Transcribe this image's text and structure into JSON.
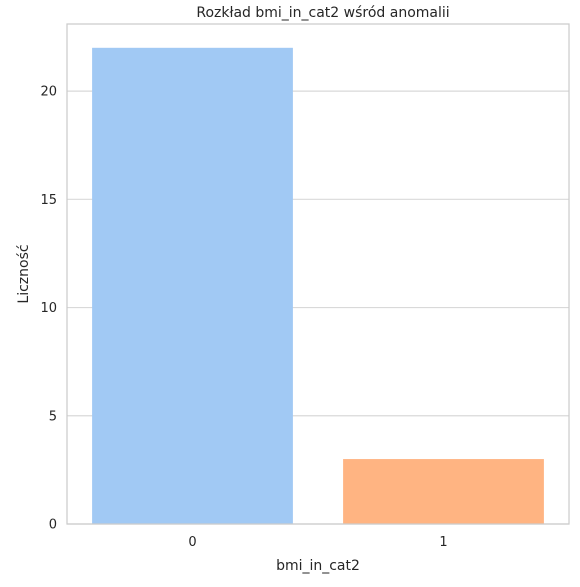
{
  "chart_data": {
    "type": "bar",
    "title": "Rozkład bmi_in_cat2 wśród anomalii",
    "xlabel": "bmi_in_cat2",
    "ylabel": "Liczność",
    "categories": [
      "0",
      "1"
    ],
    "values": [
      22,
      3
    ],
    "bar_colors": [
      "#a1c9f4",
      "#ffb482"
    ],
    "ylim": [
      0,
      23.1
    ],
    "yticks": [
      0,
      5,
      10,
      15,
      20
    ],
    "grid": "horizontal",
    "colors": {
      "grid": "#d9d9d9",
      "spine": "#cccccc",
      "text": "#262626"
    }
  }
}
